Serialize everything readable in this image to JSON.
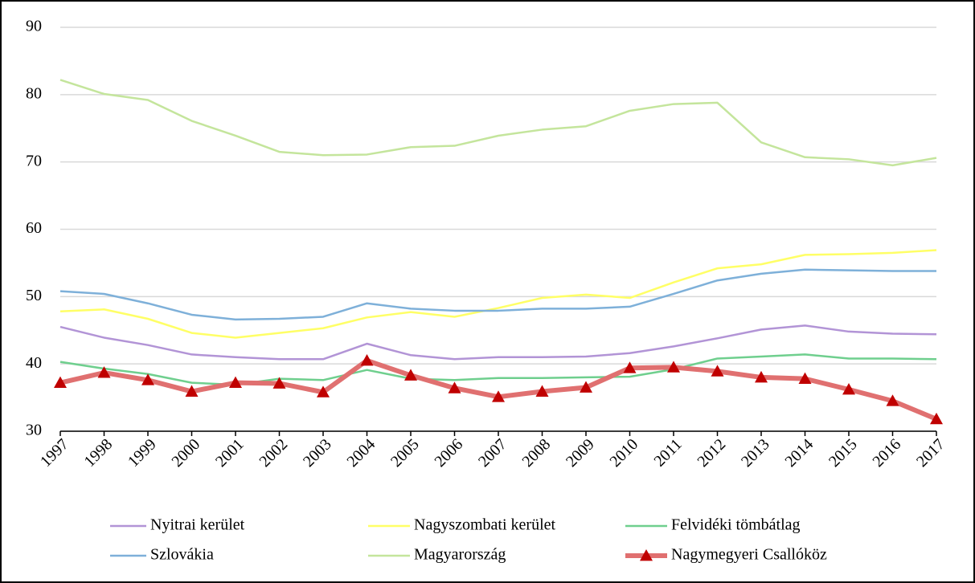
{
  "chart_data": {
    "type": "line",
    "x": [
      1997,
      1998,
      1999,
      2000,
      2001,
      2002,
      2003,
      2004,
      2005,
      2006,
      2007,
      2008,
      2009,
      2010,
      2011,
      2012,
      2013,
      2014,
      2015,
      2016,
      2017
    ],
    "xlim": [
      1997,
      2017
    ],
    "ylim": [
      30,
      90
    ],
    "yticks": [
      30,
      40,
      50,
      60,
      70,
      80,
      90
    ],
    "grid": true,
    "series": [
      {
        "name": "Nyitrai kerület",
        "color": "#b294d6",
        "values": [
          45.5,
          43.9,
          42.8,
          41.4,
          41.0,
          40.7,
          40.7,
          43.0,
          41.3,
          40.7,
          41.0,
          41.0,
          41.1,
          41.6,
          42.6,
          43.8,
          45.1,
          45.7,
          44.8,
          44.5,
          44.4
        ]
      },
      {
        "name": "Nagyszombati kerület",
        "color": "#ffff66",
        "values": [
          47.8,
          48.1,
          46.7,
          44.6,
          43.9,
          44.6,
          45.3,
          46.9,
          47.7,
          47.0,
          48.3,
          49.8,
          50.3,
          49.8,
          52.1,
          54.2,
          54.8,
          56.2,
          56.3,
          56.5,
          56.9
        ]
      },
      {
        "name": "Felvidéki tömbátlag",
        "color": "#6fcf8e",
        "values": [
          40.3,
          39.3,
          38.5,
          37.2,
          36.9,
          37.8,
          37.6,
          39.1,
          37.8,
          37.6,
          37.9,
          37.9,
          38.0,
          38.1,
          39.2,
          40.8,
          41.1,
          41.4,
          40.8,
          40.8,
          40.7
        ]
      },
      {
        "name": "Szlovákia",
        "color": "#7eb0d9",
        "values": [
          50.8,
          50.4,
          49.0,
          47.3,
          46.6,
          46.7,
          47.0,
          49.0,
          48.2,
          47.9,
          47.9,
          48.2,
          48.2,
          48.5,
          50.4,
          52.4,
          53.4,
          54.0,
          53.9,
          53.8,
          53.8
        ]
      },
      {
        "name": "Magyarország",
        "color": "#c4e59c",
        "values": [
          82.2,
          80.1,
          79.2,
          76.1,
          73.9,
          71.5,
          71.0,
          71.1,
          72.2,
          72.4,
          73.9,
          74.8,
          75.3,
          77.6,
          78.6,
          78.8,
          72.9,
          70.7,
          70.4,
          69.5,
          70.6
        ]
      },
      {
        "name": "Nagymegyeri Csallóköz",
        "color": "#e07070",
        "marker": "triangle",
        "marker_color": "#c00000",
        "values": [
          37.2,
          38.7,
          37.6,
          35.9,
          37.2,
          37.1,
          35.8,
          40.5,
          38.3,
          36.4,
          35.1,
          35.9,
          36.5,
          39.4,
          39.5,
          38.9,
          38.0,
          37.8,
          36.2,
          34.5,
          31.8
        ]
      }
    ]
  }
}
